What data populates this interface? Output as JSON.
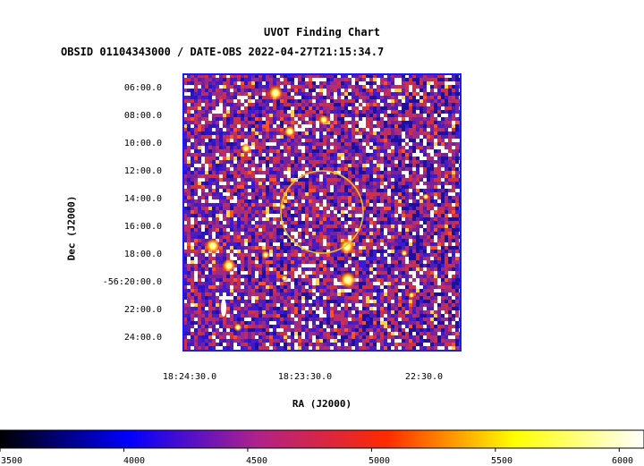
{
  "chart_data": {
    "type": "heatmap",
    "title": "UVOT Finding Chart",
    "subtitle": "OBSID 01104343000 / DATE-OBS 2022-04-27T21:15:34.7",
    "xlabel": "RA (J2000)",
    "ylabel": "Dec (J2000)",
    "x_ticks": [
      "18:24:30.0",
      "18:23:30.0",
      "22:30.0"
    ],
    "y_ticks": [
      "06:00.0",
      "08:00.0",
      "10:00.0",
      "12:00.0",
      "14:00.0",
      "16:00.0",
      "18:00.0",
      "-56:20:00.0",
      "22:00.0",
      "24:00.0"
    ],
    "colorbar": {
      "ticks": [
        3500,
        4000,
        4500,
        5000,
        5500,
        6000
      ],
      "range": [
        3500,
        6100
      ],
      "colormap": [
        "#000000",
        "#0000ff",
        "#b0228a",
        "#ff2a00",
        "#ffff00",
        "#ffffff"
      ]
    },
    "colors": {
      "frame": "#1a1aff",
      "circle": "#e8c020",
      "background": "#ffffff"
    },
    "grid": false
  }
}
